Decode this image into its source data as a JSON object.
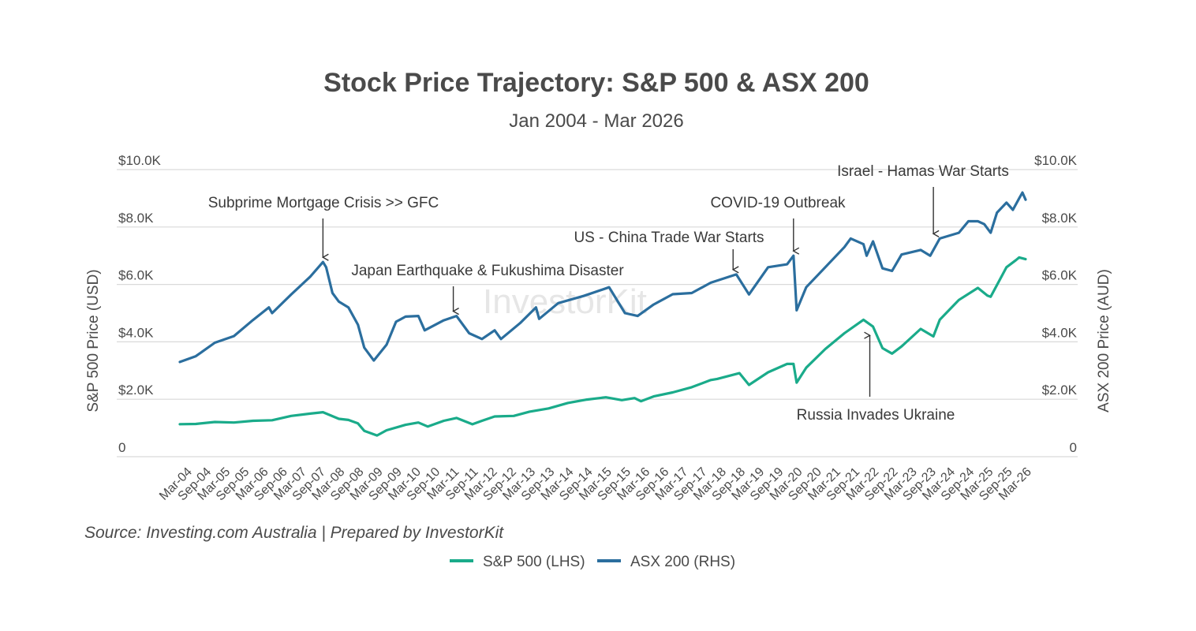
{
  "title": "Stock Price Trajectory: S&P 500 & ASX 200",
  "subtitle": "Jan 2004 - Mar 2026",
  "source": "Source: Investing.com Australia | Prepared by InvestorKit",
  "watermark": "InvestorKit",
  "colors": {
    "sp500": "#1aab8a",
    "asx200": "#2b6e9e",
    "grid": "#d9d9d9",
    "text": "#4a4a4a"
  },
  "chart_data": {
    "type": "line",
    "title": "Stock Price Trajectory: S&P 500 & ASX 200",
    "subtitle": "Jan 2004 - Mar 2026",
    "ylabel_left": "S&P 500 Price (USD)",
    "ylabel_right": "ASX 200 Price (AUD)",
    "ylim": [
      0,
      10000
    ],
    "yticks_left": [
      "0",
      "$2.0K",
      "$4.0K",
      "$6.0K",
      "$8.0K",
      "$10.0K"
    ],
    "yticks_right": [
      "0",
      "$2.0K",
      "$4.0K",
      "$6.0K",
      "$8.0K",
      "$10.0K"
    ],
    "x_range": [
      "Jan 2004",
      "Mar 2026"
    ],
    "x_ticks": [
      "Mar-04",
      "Sep-04",
      "Mar-05",
      "Sep-05",
      "Mar-06",
      "Sep-06",
      "Mar-07",
      "Sep-07",
      "Mar-08",
      "Sep-08",
      "Mar-09",
      "Sep-09",
      "Mar-10",
      "Sep-10",
      "Mar-11",
      "Sep-11",
      "Mar-12",
      "Sep-12",
      "Mar-13",
      "Sep-13",
      "Mar-14",
      "Sep-14",
      "Mar-15",
      "Sep-15",
      "Mar-16",
      "Sep-16",
      "Mar-17",
      "Sep-17",
      "Mar-18",
      "Sep-18",
      "Mar-19",
      "Sep-19",
      "Mar-20",
      "Sep-20",
      "Mar-21",
      "Sep-21",
      "Mar-22",
      "Sep-22",
      "Mar-23",
      "Sep-23",
      "Mar-24",
      "Sep-24",
      "Mar-25",
      "Sep-25",
      "Mar-26"
    ],
    "grid": true,
    "legend_position": "bottom-center",
    "series": [
      {
        "name": "S&P 500 (LHS)",
        "axis": "left",
        "points": [
          [
            "2004-01",
            1132
          ],
          [
            "2004-06",
            1140
          ],
          [
            "2004-12",
            1210
          ],
          [
            "2005-06",
            1190
          ],
          [
            "2005-12",
            1250
          ],
          [
            "2006-06",
            1270
          ],
          [
            "2006-12",
            1420
          ],
          [
            "2007-06",
            1500
          ],
          [
            "2007-10",
            1550
          ],
          [
            "2008-03",
            1320
          ],
          [
            "2008-06",
            1280
          ],
          [
            "2008-09",
            1160
          ],
          [
            "2008-11",
            900
          ],
          [
            "2009-03",
            740
          ],
          [
            "2009-06",
            920
          ],
          [
            "2009-12",
            1110
          ],
          [
            "2010-04",
            1190
          ],
          [
            "2010-07",
            1050
          ],
          [
            "2010-12",
            1250
          ],
          [
            "2011-04",
            1350
          ],
          [
            "2011-09",
            1130
          ],
          [
            "2011-12",
            1250
          ],
          [
            "2012-04",
            1400
          ],
          [
            "2012-10",
            1420
          ],
          [
            "2013-03",
            1570
          ],
          [
            "2013-09",
            1680
          ],
          [
            "2014-03",
            1870
          ],
          [
            "2014-09",
            1990
          ],
          [
            "2015-03",
            2070
          ],
          [
            "2015-08",
            1970
          ],
          [
            "2015-12",
            2040
          ],
          [
            "2016-02",
            1930
          ],
          [
            "2016-06",
            2100
          ],
          [
            "2016-12",
            2240
          ],
          [
            "2017-06",
            2420
          ],
          [
            "2017-12",
            2670
          ],
          [
            "2018-02",
            2710
          ],
          [
            "2018-09",
            2910
          ],
          [
            "2018-12",
            2500
          ],
          [
            "2019-06",
            2940
          ],
          [
            "2019-12",
            3230
          ],
          [
            "2020-02",
            3230
          ],
          [
            "2020-03",
            2580
          ],
          [
            "2020-06",
            3100
          ],
          [
            "2020-12",
            3750
          ],
          [
            "2021-06",
            4300
          ],
          [
            "2021-12",
            4770
          ],
          [
            "2022-03",
            4530
          ],
          [
            "2022-06",
            3780
          ],
          [
            "2022-09",
            3590
          ],
          [
            "2022-12",
            3840
          ],
          [
            "2023-06",
            4450
          ],
          [
            "2023-10",
            4190
          ],
          [
            "2023-12",
            4770
          ],
          [
            "2024-06",
            5460
          ],
          [
            "2024-12",
            5880
          ],
          [
            "2025-03",
            5610
          ],
          [
            "2025-04",
            5570
          ],
          [
            "2025-09",
            6600
          ],
          [
            "2025-12",
            6850
          ],
          [
            "2026-01",
            6940
          ],
          [
            "2026-03",
            6880
          ]
        ]
      },
      {
        "name": "ASX 200 (RHS)",
        "axis": "right",
        "points": [
          [
            "2004-01",
            3300
          ],
          [
            "2004-06",
            3500
          ],
          [
            "2004-12",
            3970
          ],
          [
            "2005-06",
            4200
          ],
          [
            "2005-12",
            4760
          ],
          [
            "2006-05",
            5200
          ],
          [
            "2006-06",
            5000
          ],
          [
            "2006-12",
            5650
          ],
          [
            "2007-06",
            6270
          ],
          [
            "2007-10",
            6780
          ],
          [
            "2007-11",
            6600
          ],
          [
            "2008-01",
            5700
          ],
          [
            "2008-03",
            5400
          ],
          [
            "2008-06",
            5200
          ],
          [
            "2008-09",
            4600
          ],
          [
            "2008-11",
            3800
          ],
          [
            "2009-02",
            3350
          ],
          [
            "2009-06",
            3900
          ],
          [
            "2009-09",
            4700
          ],
          [
            "2009-12",
            4880
          ],
          [
            "2010-04",
            4900
          ],
          [
            "2010-06",
            4400
          ],
          [
            "2010-12",
            4750
          ],
          [
            "2011-04",
            4900
          ],
          [
            "2011-08",
            4300
          ],
          [
            "2011-12",
            4100
          ],
          [
            "2012-04",
            4400
          ],
          [
            "2012-06",
            4100
          ],
          [
            "2012-12",
            4650
          ],
          [
            "2013-05",
            5200
          ],
          [
            "2013-06",
            4800
          ],
          [
            "2013-12",
            5350
          ],
          [
            "2014-08",
            5600
          ],
          [
            "2015-04",
            5900
          ],
          [
            "2015-09",
            5000
          ],
          [
            "2016-01",
            4900
          ],
          [
            "2016-06",
            5300
          ],
          [
            "2016-12",
            5660
          ],
          [
            "2017-06",
            5700
          ],
          [
            "2017-12",
            6060
          ],
          [
            "2018-08",
            6350
          ],
          [
            "2018-12",
            5650
          ],
          [
            "2019-06",
            6600
          ],
          [
            "2019-12",
            6700
          ],
          [
            "2020-02",
            7000
          ],
          [
            "2020-03",
            5100
          ],
          [
            "2020-06",
            5900
          ],
          [
            "2020-12",
            6600
          ],
          [
            "2021-06",
            7300
          ],
          [
            "2021-08",
            7600
          ],
          [
            "2021-12",
            7400
          ],
          [
            "2022-01",
            7000
          ],
          [
            "2022-03",
            7500
          ],
          [
            "2022-06",
            6560
          ],
          [
            "2022-09",
            6470
          ],
          [
            "2022-12",
            7040
          ],
          [
            "2023-06",
            7200
          ],
          [
            "2023-09",
            7000
          ],
          [
            "2023-12",
            7600
          ],
          [
            "2024-06",
            7800
          ],
          [
            "2024-09",
            8200
          ],
          [
            "2024-12",
            8200
          ],
          [
            "2025-02",
            8100
          ],
          [
            "2025-04",
            7800
          ],
          [
            "2025-06",
            8500
          ],
          [
            "2025-09",
            8850
          ],
          [
            "2025-11",
            8600
          ],
          [
            "2026-01",
            9000
          ],
          [
            "2026-02",
            9200
          ],
          [
            "2026-03",
            8950
          ]
        ]
      }
    ],
    "annotations": [
      {
        "text": "Subprime Mortgage Crisis >> GFC",
        "date": "2007-10",
        "value": 6780,
        "axis": "right",
        "side": "above"
      },
      {
        "text": "Japan Earthquake & Fukushima Disaster",
        "date": "2011-03",
        "value": 4900,
        "axis": "right",
        "side": "above"
      },
      {
        "text": "US - China Trade War Starts",
        "date": "2018-07",
        "value": 6350,
        "axis": "right",
        "side": "above"
      },
      {
        "text": "COVID-19 Outbreak",
        "date": "2020-02",
        "value": 7000,
        "axis": "right",
        "side": "above"
      },
      {
        "text": "Israel - Hamas War Starts",
        "date": "2023-10",
        "value": 7600,
        "axis": "right",
        "side": "above"
      },
      {
        "text": "Russia Invades Ukraine",
        "date": "2022-02",
        "value": 4500,
        "axis": "left",
        "side": "below"
      }
    ]
  }
}
